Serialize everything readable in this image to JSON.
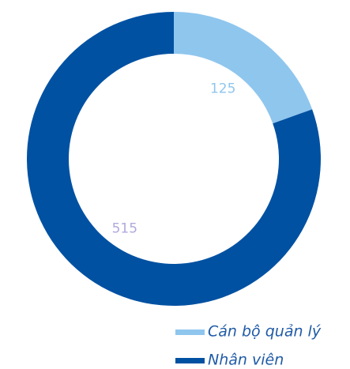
{
  "chart_data": {
    "type": "donut",
    "categories": [
      "Cán bộ quản lý",
      "Nhân viên"
    ],
    "values": [
      125,
      515
    ],
    "colors": [
      "#8fc6ee",
      "#0051a2"
    ],
    "label_colors": [
      "#8fc6ee",
      "#aeaadb"
    ],
    "legend": "bottom-right"
  }
}
